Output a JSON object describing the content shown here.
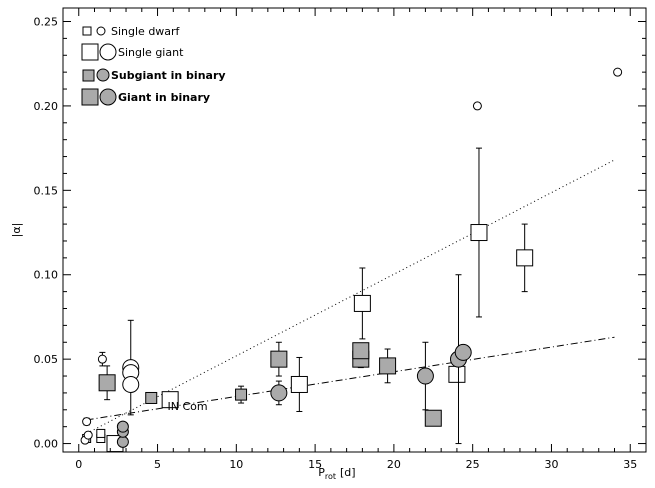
{
  "chart_data": {
    "type": "scatter",
    "xlabel": "P",
    "xlabel_sub": "rot",
    "xlabel_unit": "[d]",
    "ylabel": "|α|",
    "xlim": [
      -1,
      36
    ],
    "ylim": [
      -0.005,
      0.258
    ],
    "xticks": [
      0,
      5,
      10,
      15,
      20,
      25,
      30,
      35
    ],
    "yticks": [
      0.0,
      0.05,
      0.1,
      0.15,
      0.2,
      0.25
    ],
    "ytick_labels": [
      "0.00",
      "0.05",
      "0.10",
      "0.15",
      "0.20",
      "0.25"
    ],
    "legend": [
      {
        "label": "Single dwarf",
        "style": "small-open",
        "bold": false
      },
      {
        "label": "Single giant",
        "style": "large-open",
        "bold": false
      },
      {
        "label": "Subgiant in binary",
        "style": "small-filled",
        "bold": true
      },
      {
        "label": "Giant in binary",
        "style": "large-filled",
        "bold": true
      }
    ],
    "annotation": {
      "text": "IN Com",
      "x": 5,
      "y": 0.02
    },
    "series": [
      {
        "name": "Single dwarf",
        "points": [
          {
            "x": 0.5,
            "y": 0.003,
            "m": "sq"
          },
          {
            "x": 0.5,
            "y": 0.013,
            "m": "ci",
            "e": 0.002
          },
          {
            "x": 0.4,
            "y": 0.002,
            "m": "ci"
          },
          {
            "x": 0.6,
            "y": 0.005,
            "m": "ci"
          },
          {
            "x": 1.4,
            "y": 0.003,
            "m": "sq"
          },
          {
            "x": 1.4,
            "y": 0.006,
            "m": "sq"
          },
          {
            "x": 1.5,
            "y": 0.05,
            "m": "ci",
            "e": 0.004
          },
          {
            "x": 25.3,
            "y": 0.2,
            "m": "ci"
          },
          {
            "x": 34.2,
            "y": 0.22,
            "m": "ci"
          }
        ]
      },
      {
        "name": "Single giant",
        "points": [
          {
            "x": 3.3,
            "y": 0.045,
            "m": "ci",
            "e": 0.028
          },
          {
            "x": 3.3,
            "y": 0.042,
            "m": "ci"
          },
          {
            "x": 3.3,
            "y": 0.035,
            "m": "ci"
          },
          {
            "x": 2.3,
            "y": 0.0,
            "m": "sq"
          },
          {
            "x": 5.8,
            "y": 0.026,
            "m": "sq"
          },
          {
            "x": 14.0,
            "y": 0.035,
            "m": "sq",
            "e": 0.016
          },
          {
            "x": 18.0,
            "y": 0.083,
            "m": "sq",
            "e": 0.021
          },
          {
            "x": 24.0,
            "y": 0.041,
            "m": "sq"
          },
          {
            "x": 25.4,
            "y": 0.125,
            "m": "sq",
            "e": 0.05
          },
          {
            "x": 28.3,
            "y": 0.11,
            "m": "sq",
            "e": 0.02
          }
        ]
      },
      {
        "name": "Subgiant in binary",
        "points": [
          {
            "x": 2.8,
            "y": 0.001,
            "m": "ci"
          },
          {
            "x": 2.8,
            "y": 0.007,
            "m": "ci"
          },
          {
            "x": 2.8,
            "y": 0.01,
            "m": "ci"
          },
          {
            "x": 4.6,
            "y": 0.027,
            "m": "sq"
          },
          {
            "x": 10.3,
            "y": 0.029,
            "m": "sq",
            "e": 0.005
          }
        ]
      },
      {
        "name": "Giant in binary",
        "points": [
          {
            "x": 1.8,
            "y": 0.036,
            "m": "sq",
            "e": 0.01
          },
          {
            "x": 12.7,
            "y": 0.05,
            "m": "sq",
            "e": 0.01
          },
          {
            "x": 12.7,
            "y": 0.03,
            "m": "ci",
            "e": 0.007
          },
          {
            "x": 17.9,
            "y": 0.05,
            "m": "sq",
            "e": 0.005
          },
          {
            "x": 17.9,
            "y": 0.055,
            "m": "sq"
          },
          {
            "x": 19.6,
            "y": 0.046,
            "m": "sq",
            "e": 0.01
          },
          {
            "x": 22.0,
            "y": 0.04,
            "m": "ci",
            "e": 0.02
          },
          {
            "x": 22.5,
            "y": 0.015,
            "m": "sq",
            "e": 0.004
          },
          {
            "x": 24.1,
            "y": 0.05,
            "m": "ci",
            "e": 0.05
          },
          {
            "x": 24.4,
            "y": 0.054,
            "m": "ci",
            "e": 0.003
          }
        ]
      }
    ],
    "fits": [
      {
        "name": "single",
        "dash": "1,3",
        "x": [
          0.5,
          34
        ],
        "y": [
          0.006,
          0.168
        ]
      },
      {
        "name": "binary",
        "dash": "7,3,1,3",
        "x": [
          0.5,
          34
        ],
        "y": [
          0.014,
          0.063
        ]
      }
    ]
  }
}
